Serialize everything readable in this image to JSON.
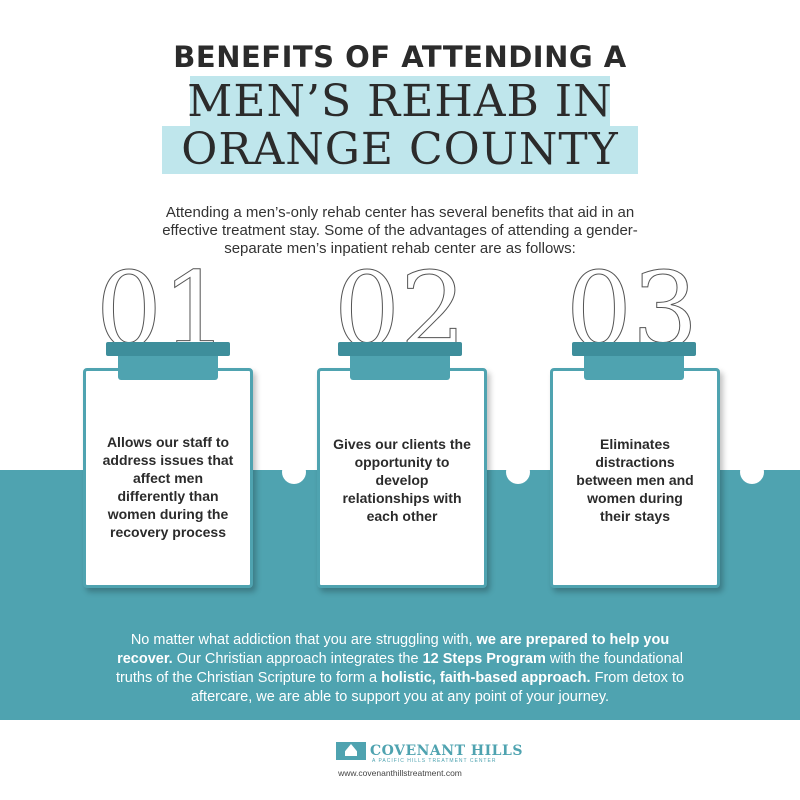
{
  "title": {
    "line1": "BENEFITS OF ATTENDING A",
    "line2": "MEN’S REHAB IN",
    "line3": "ORANGE COUNTY"
  },
  "intro": "Attending a men’s-only rehab center has several benefits that aid in an effective treatment stay. Some of the advantages of attending a gender-separate men’s inpatient rehab center are as follows:",
  "benefits": [
    {
      "number": "01",
      "text": "Allows our staff to address issues that affect men differently than women during the recovery process"
    },
    {
      "number": "02",
      "text": "Gives our clients the opportunity to develop relationships with each other"
    },
    {
      "number": "03",
      "text": "Eliminates distractions between men and women during their stays"
    }
  ],
  "closing": {
    "p1": "No matter what addiction that you are struggling with, ",
    "b1": "we are prepared to help you recover.",
    "p2": " Our Christian approach integrates the ",
    "b2": "12 Steps Program",
    "p3": " with the foundational truths of the Christian Scripture to form a ",
    "b3": "holistic, faith-based approach.",
    "p4": " From detox to aftercare, we are able to support you at any point of your journey."
  },
  "logo": {
    "name": "COVENANT HILLS",
    "tagline": "A PACIFIC HILLS TREATMENT CENTER",
    "icon": "house-logo-icon"
  },
  "url": "www.covenanthillstreatment.com",
  "colors": {
    "accent": "#4fa3b0",
    "highlight": "#bfe6ec",
    "text": "#2b2b2b"
  }
}
